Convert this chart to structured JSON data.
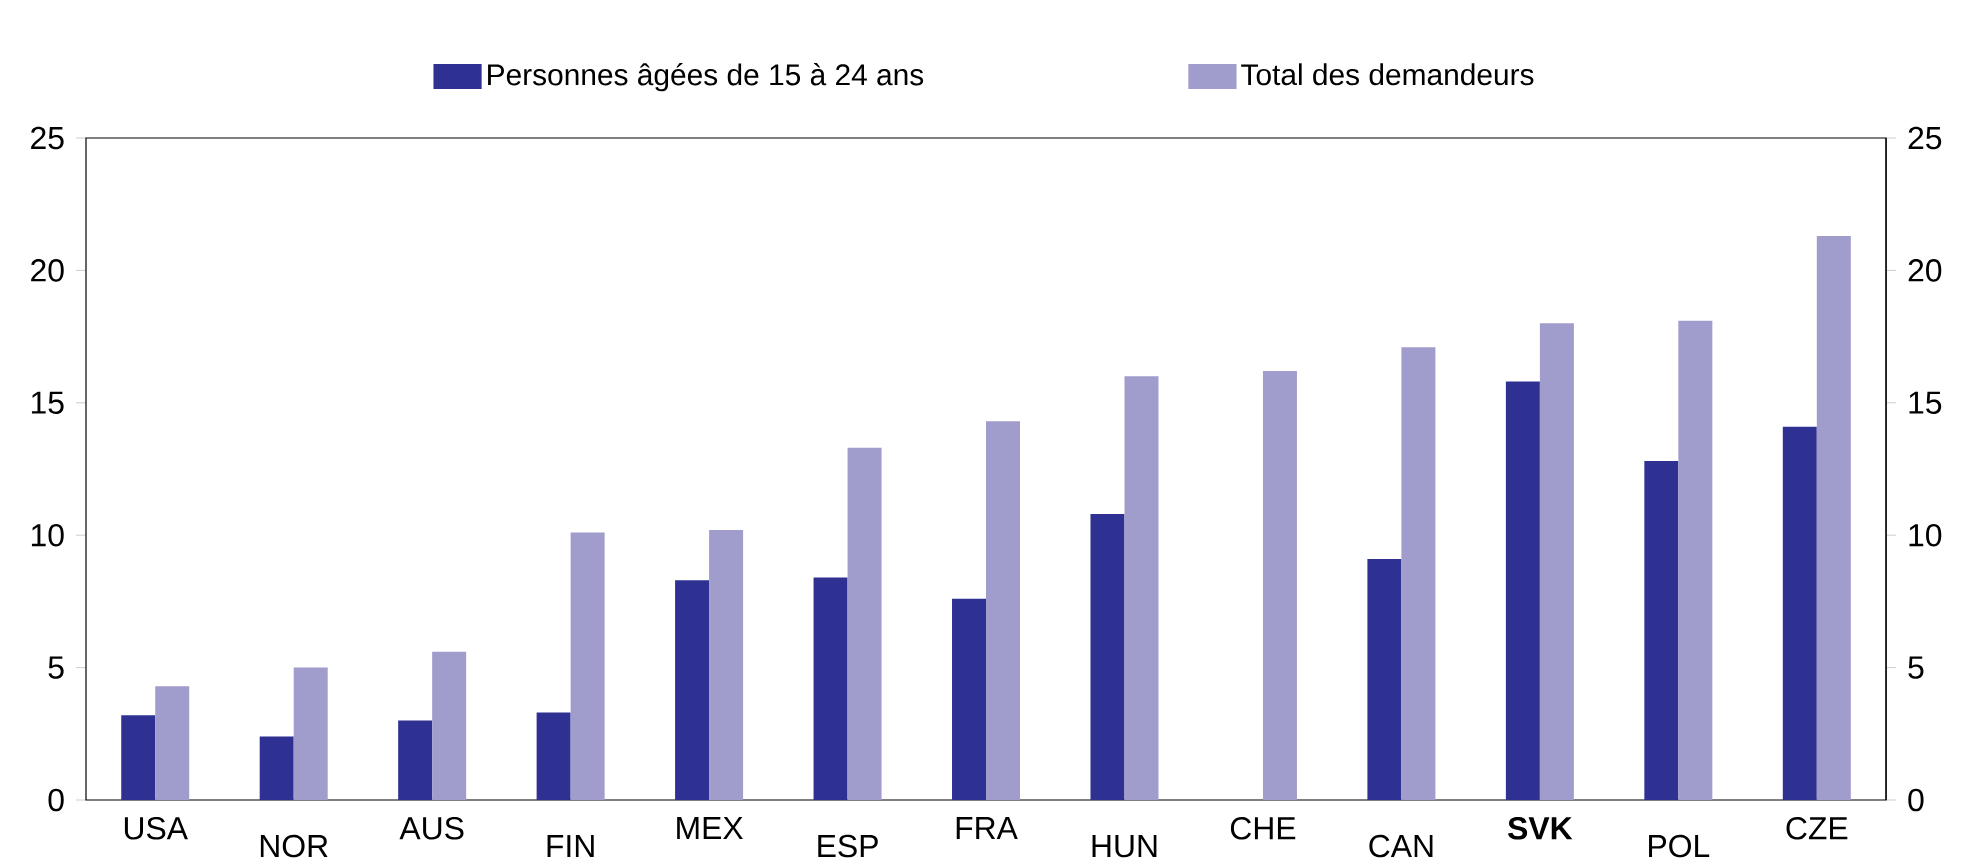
{
  "chart_data": {
    "type": "bar",
    "categories": [
      "USA",
      "NOR",
      "AUS",
      "FIN",
      "MEX",
      "ESP",
      "FRA",
      "HUN",
      "CHE",
      "CAN",
      "**SVK**",
      "POL",
      "CZE"
    ],
    "series": [
      {
        "name": "Personnes âgées de 15 à 24 ans",
        "color": "#2e3192",
        "values": [
          3.2,
          2.4,
          3.0,
          3.3,
          8.3,
          8.4,
          7.6,
          10.8,
          null,
          9.1,
          15.8,
          12.8,
          14.1
        ]
      },
      {
        "name": "Total des demandeurs",
        "color": "#a09ccc",
        "values": [
          4.3,
          5.0,
          5.6,
          10.1,
          10.2,
          13.3,
          14.3,
          16.0,
          16.2,
          17.1,
          18.0,
          18.1,
          21.3
        ]
      }
    ],
    "ylim": [
      0,
      25
    ],
    "yticks": [
      0,
      5,
      10,
      15,
      20,
      25
    ],
    "y2lim": [
      0,
      25
    ],
    "y2ticks": [
      0,
      5,
      10,
      15,
      20,
      25
    ],
    "legend": "top"
  }
}
